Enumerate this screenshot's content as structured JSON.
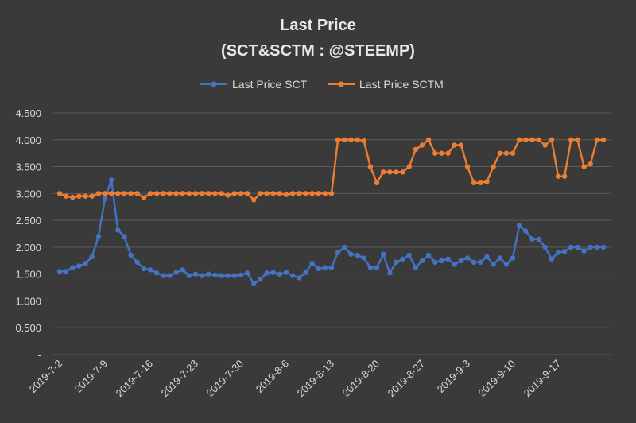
{
  "chart_data": {
    "type": "line",
    "title": "Last Price",
    "subtitle": "(SCT&SCTM : @STEEMP)",
    "xlabel": "",
    "ylabel": "",
    "ylim": [
      0,
      4.5
    ],
    "grid": true,
    "legend_position": "top",
    "y_ticks": [
      "-",
      "0.500",
      "1.000",
      "1.500",
      "2.000",
      "2.500",
      "3.000",
      "3.500",
      "4.000",
      "4.500"
    ],
    "x_tick_labels": [
      "2019-7-2",
      "2019-7-9",
      "2019-7-16",
      "2019-7-23",
      "2019-7-30",
      "2019-8-6",
      "2019-8-13",
      "2019-8-20",
      "2019-8-27",
      "2019-9-3",
      "2019-9-10",
      "2019-9-17"
    ],
    "x_tick_every": 7,
    "x": [
      "2019-7-2",
      "2019-7-3",
      "2019-7-4",
      "2019-7-5",
      "2019-7-6",
      "2019-7-7",
      "2019-7-8",
      "2019-7-9",
      "2019-7-10",
      "2019-7-11",
      "2019-7-12",
      "2019-7-13",
      "2019-7-14",
      "2019-7-15",
      "2019-7-16",
      "2019-7-17",
      "2019-7-18",
      "2019-7-19",
      "2019-7-20",
      "2019-7-21",
      "2019-7-22",
      "2019-7-23",
      "2019-7-24",
      "2019-7-25",
      "2019-7-26",
      "2019-7-27",
      "2019-7-28",
      "2019-7-29",
      "2019-7-30",
      "2019-7-31",
      "2019-8-1",
      "2019-8-2",
      "2019-8-3",
      "2019-8-4",
      "2019-8-5",
      "2019-8-6",
      "2019-8-7",
      "2019-8-8",
      "2019-8-9",
      "2019-8-10",
      "2019-8-11",
      "2019-8-12",
      "2019-8-13",
      "2019-8-14",
      "2019-8-15",
      "2019-8-16",
      "2019-8-17",
      "2019-8-18",
      "2019-8-19",
      "2019-8-20",
      "2019-8-21",
      "2019-8-22",
      "2019-8-23",
      "2019-8-24",
      "2019-8-25",
      "2019-8-26",
      "2019-8-27",
      "2019-8-28",
      "2019-8-29",
      "2019-8-30",
      "2019-8-31",
      "2019-9-1",
      "2019-9-2",
      "2019-9-3",
      "2019-9-4",
      "2019-9-5",
      "2019-9-6",
      "2019-9-7",
      "2019-9-8",
      "2019-9-9",
      "2019-9-10",
      "2019-9-11",
      "2019-9-12",
      "2019-9-13",
      "2019-9-14",
      "2019-9-15",
      "2019-9-16",
      "2019-9-17",
      "2019-9-18",
      "2019-9-19",
      "2019-9-20",
      "2019-9-21",
      "2019-9-22",
      "2019-9-23",
      "2019-9-24"
    ],
    "series": [
      {
        "name": "Last Price SCT",
        "color": "#4472c4",
        "values": [
          1.55,
          1.55,
          1.62,
          1.65,
          1.7,
          1.82,
          2.2,
          2.9,
          3.25,
          2.32,
          2.2,
          1.85,
          1.72,
          1.6,
          1.58,
          1.52,
          1.47,
          1.47,
          1.53,
          1.58,
          1.47,
          1.5,
          1.47,
          1.5,
          1.48,
          1.47,
          1.47,
          1.47,
          1.48,
          1.52,
          1.32,
          1.4,
          1.52,
          1.53,
          1.5,
          1.53,
          1.47,
          1.43,
          1.53,
          1.7,
          1.6,
          1.62,
          1.62,
          1.9,
          2.0,
          1.87,
          1.85,
          1.8,
          1.62,
          1.62,
          1.87,
          1.52,
          1.72,
          1.78,
          1.85,
          1.62,
          1.75,
          1.85,
          1.72,
          1.75,
          1.78,
          1.68,
          1.75,
          1.8,
          1.72,
          1.72,
          1.82,
          1.68,
          1.8,
          1.68,
          1.8,
          2.4,
          2.3,
          2.15,
          2.15,
          2.0,
          1.78,
          1.9,
          1.92,
          2.0,
          2.0,
          1.93,
          2.0,
          2.0,
          2.0
        ]
      },
      {
        "name": "Last Price SCTM",
        "color": "#ed7d31",
        "values": [
          3.0,
          2.95,
          2.93,
          2.95,
          2.95,
          2.95,
          3.0,
          3.0,
          3.0,
          3.0,
          3.0,
          3.0,
          3.0,
          2.92,
          3.0,
          3.0,
          3.0,
          3.0,
          3.0,
          3.0,
          3.0,
          3.0,
          3.0,
          3.0,
          3.0,
          3.0,
          2.97,
          3.0,
          3.0,
          3.0,
          2.88,
          3.0,
          3.0,
          3.0,
          3.0,
          2.98,
          3.0,
          3.0,
          3.0,
          3.0,
          3.0,
          3.0,
          3.0,
          4.0,
          4.0,
          4.0,
          4.0,
          3.98,
          3.5,
          3.2,
          3.4,
          3.4,
          3.4,
          3.4,
          3.5,
          3.82,
          3.9,
          4.0,
          3.75,
          3.75,
          3.75,
          3.9,
          3.9,
          3.5,
          3.2,
          3.2,
          3.22,
          3.5,
          3.75,
          3.75,
          3.75,
          4.0,
          4.0,
          4.0,
          4.0,
          3.9,
          4.0,
          3.32,
          3.32,
          4.0,
          4.0,
          3.5,
          3.55,
          4.0,
          4.0
        ]
      }
    ]
  }
}
